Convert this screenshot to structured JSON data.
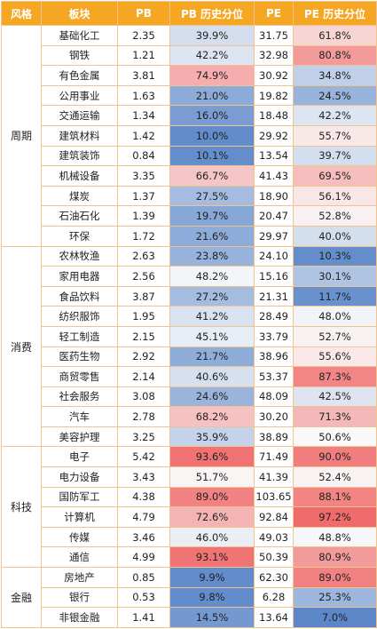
{
  "headers": {
    "style": "风格",
    "sector": "板块",
    "pb": "PB",
    "pb_pct": "PB 历史分位",
    "pe": "PE",
    "pe_pct": "PE 历史分位"
  },
  "colors": {
    "header_bg": "#f5a623",
    "border": "#f2c28f",
    "scale_low": "#5b87c9",
    "scale_mid": "#fafafa",
    "scale_high": "#f06b6b"
  },
  "groups": [
    {
      "style": "周期",
      "rows": [
        {
          "sector": "基础化工",
          "pb": "2.35",
          "pb_pct": "39.9%",
          "pe": "31.75",
          "pe_pct": "61.8%"
        },
        {
          "sector": "钢铁",
          "pb": "1.21",
          "pb_pct": "42.2%",
          "pe": "32.98",
          "pe_pct": "80.8%"
        },
        {
          "sector": "有色金属",
          "pb": "3.81",
          "pb_pct": "74.9%",
          "pe": "30.92",
          "pe_pct": "34.8%"
        },
        {
          "sector": "公用事业",
          "pb": "1.63",
          "pb_pct": "21.0%",
          "pe": "19.82",
          "pe_pct": "24.5%"
        },
        {
          "sector": "交通运输",
          "pb": "1.34",
          "pb_pct": "16.0%",
          "pe": "18.48",
          "pe_pct": "42.2%"
        },
        {
          "sector": "建筑材料",
          "pb": "1.42",
          "pb_pct": "10.0%",
          "pe": "29.92",
          "pe_pct": "55.7%"
        },
        {
          "sector": "建筑装饰",
          "pb": "0.84",
          "pb_pct": "10.1%",
          "pe": "13.54",
          "pe_pct": "39.7%"
        },
        {
          "sector": "机械设备",
          "pb": "3.35",
          "pb_pct": "66.7%",
          "pe": "41.43",
          "pe_pct": "69.5%"
        },
        {
          "sector": "煤炭",
          "pb": "1.37",
          "pb_pct": "27.5%",
          "pe": "18.90",
          "pe_pct": "56.1%"
        },
        {
          "sector": "石油石化",
          "pb": "1.39",
          "pb_pct": "19.7%",
          "pe": "20.47",
          "pe_pct": "52.8%"
        },
        {
          "sector": "环保",
          "pb": "1.72",
          "pb_pct": "21.6%",
          "pe": "29.97",
          "pe_pct": "40.0%"
        }
      ]
    },
    {
      "style": "消费",
      "rows": [
        {
          "sector": "农林牧渔",
          "pb": "2.63",
          "pb_pct": "23.8%",
          "pe": "24.10",
          "pe_pct": "10.3%"
        },
        {
          "sector": "家用电器",
          "pb": "2.56",
          "pb_pct": "48.2%",
          "pe": "15.16",
          "pe_pct": "30.1%"
        },
        {
          "sector": "食品饮料",
          "pb": "3.87",
          "pb_pct": "27.2%",
          "pe": "21.31",
          "pe_pct": "11.7%"
        },
        {
          "sector": "纺织服饰",
          "pb": "1.95",
          "pb_pct": "41.2%",
          "pe": "28.49",
          "pe_pct": "48.0%"
        },
        {
          "sector": "轻工制造",
          "pb": "2.15",
          "pb_pct": "45.1%",
          "pe": "33.79",
          "pe_pct": "52.7%"
        },
        {
          "sector": "医药生物",
          "pb": "2.92",
          "pb_pct": "21.7%",
          "pe": "38.96",
          "pe_pct": "55.6%"
        },
        {
          "sector": "商贸零售",
          "pb": "2.14",
          "pb_pct": "40.6%",
          "pe": "53.37",
          "pe_pct": "87.3%"
        },
        {
          "sector": "社会服务",
          "pb": "3.08",
          "pb_pct": "24.6%",
          "pe": "48.09",
          "pe_pct": "42.5%"
        },
        {
          "sector": "汽车",
          "pb": "2.78",
          "pb_pct": "68.2%",
          "pe": "30.20",
          "pe_pct": "71.3%"
        },
        {
          "sector": "美容护理",
          "pb": "3.25",
          "pb_pct": "35.9%",
          "pe": "38.89",
          "pe_pct": "50.6%"
        }
      ]
    },
    {
      "style": "科技",
      "rows": [
        {
          "sector": "电子",
          "pb": "5.42",
          "pb_pct": "93.6%",
          "pe": "71.49",
          "pe_pct": "90.0%"
        },
        {
          "sector": "电力设备",
          "pb": "3.43",
          "pb_pct": "51.7%",
          "pe": "41.39",
          "pe_pct": "52.4%"
        },
        {
          "sector": "国防军工",
          "pb": "4.38",
          "pb_pct": "89.0%",
          "pe": "103.65",
          "pe_pct": "88.1%"
        },
        {
          "sector": "计算机",
          "pb": "4.79",
          "pb_pct": "72.6%",
          "pe": "92.84",
          "pe_pct": "97.2%"
        },
        {
          "sector": "传媒",
          "pb": "3.46",
          "pb_pct": "46.0%",
          "pe": "49.03",
          "pe_pct": "48.8%"
        },
        {
          "sector": "通信",
          "pb": "4.99",
          "pb_pct": "93.1%",
          "pe": "50.39",
          "pe_pct": "80.9%"
        }
      ]
    },
    {
      "style": "金融",
      "rows": [
        {
          "sector": "房地产",
          "pb": "0.85",
          "pb_pct": "9.9%",
          "pe": "62.30",
          "pe_pct": "89.0%"
        },
        {
          "sector": "银行",
          "pb": "0.53",
          "pb_pct": "9.8%",
          "pe": "6.28",
          "pe_pct": "25.3%"
        },
        {
          "sector": "非银金融",
          "pb": "1.41",
          "pb_pct": "14.5%",
          "pe": "13.64",
          "pe_pct": "7.0%"
        }
      ]
    }
  ]
}
